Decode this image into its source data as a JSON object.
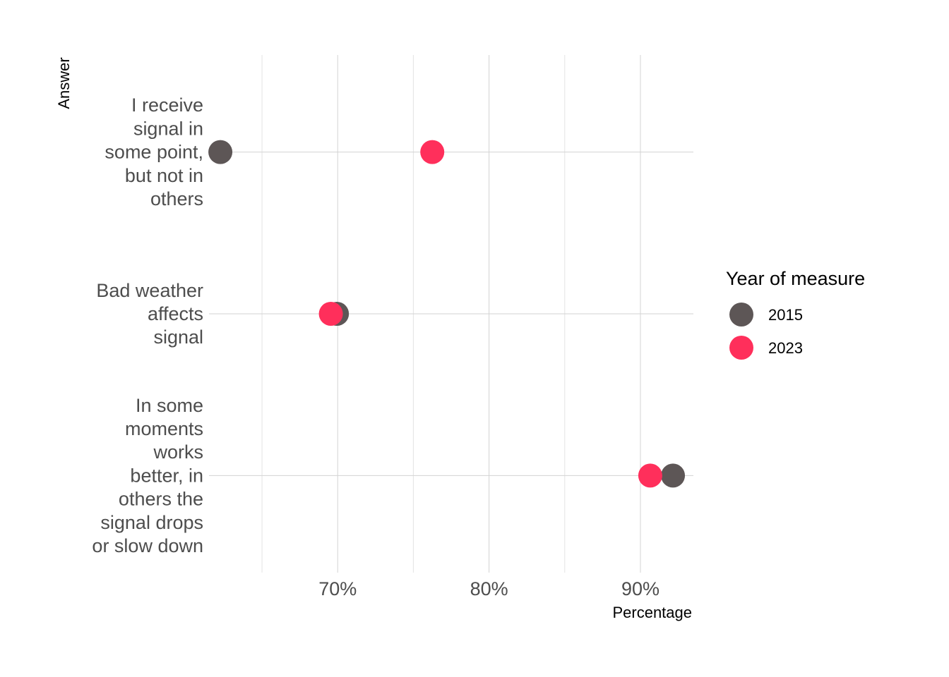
{
  "chart_data": {
    "type": "scatter",
    "title": "",
    "xlabel": "Percentage",
    "ylabel": "Answer",
    "xlim": [
      0.615,
      0.935
    ],
    "x_ticks": [
      0.7,
      0.8,
      0.9
    ],
    "x_tick_labels": [
      "70%",
      "80%",
      "90%"
    ],
    "x_minor_ticks": [
      0.65,
      0.75,
      0.85
    ],
    "categories": [
      [
        "I receive",
        "signal in",
        "some point,",
        "but not in",
        "others"
      ],
      [
        "Bad weather",
        "affects",
        "signal"
      ],
      [
        "In some",
        "moments",
        "works",
        "better, in",
        "others the",
        "signal drops",
        "or slow down"
      ]
    ],
    "series": [
      {
        "name": "2015",
        "color": "#5d5656",
        "values": [
          0.6225,
          0.6995,
          0.9215
        ]
      },
      {
        "name": "2023",
        "color": "#ff2f5b",
        "values": [
          0.7625,
          0.6955,
          0.9065
        ]
      }
    ],
    "legend": {
      "title": "Year of measure",
      "position": "right"
    },
    "grid": true
  }
}
